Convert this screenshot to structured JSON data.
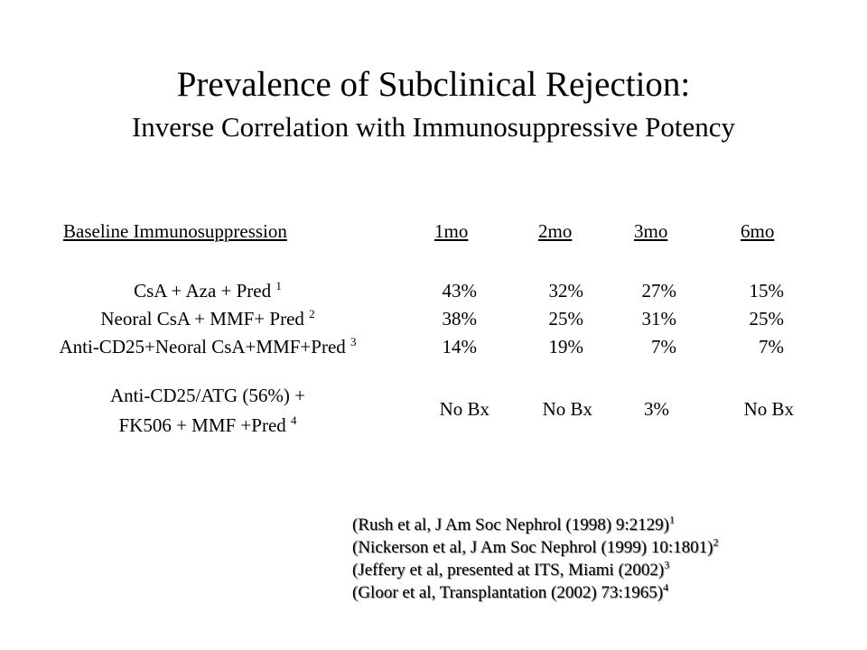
{
  "slide": {
    "title": "Prevalence of Subclinical Rejection:",
    "subtitle": "Inverse Correlation with Immunosuppressive Potency"
  },
  "table": {
    "columns": [
      "Baseline Immunosuppression",
      "1mo",
      "2mo",
      "3mo",
      "6mo"
    ],
    "rows": [
      {
        "regimen": "CsA + Aza + Pred",
        "ref": "1",
        "values": [
          "43%",
          "32%",
          "27%",
          "15%"
        ]
      },
      {
        "regimen": "Neoral CsA + MMF+ Pred",
        "ref": "2",
        "values": [
          "38%",
          "25%",
          "31%",
          "25%"
        ]
      },
      {
        "regimen": "Anti-CD25+Neoral CsA+MMF+Pred",
        "ref": "3",
        "values": [
          "14%",
          "19%",
          "7%",
          "7%"
        ]
      },
      {
        "regimen_line1": "Anti-CD25/ATG (56%) +",
        "regimen_line2": "FK506 + MMF +Pred",
        "ref": "4",
        "values": [
          "No Bx",
          "No Bx",
          "3%",
          "No Bx"
        ]
      }
    ]
  },
  "references": [
    {
      "text": "(Rush et al, J Am Soc Nephrol (1998) 9:2129)",
      "sup": "1"
    },
    {
      "text": "(Nickerson et al, J Am Soc Nephrol  (1999) 10:1801)",
      "sup": "2"
    },
    {
      "text": "(Jeffery et al, presented at ITS, Miami (2002)",
      "sup": "3"
    },
    {
      "text": "(Gloor et al, Transplantation (2002) 73:1965)",
      "sup": "4"
    }
  ]
}
